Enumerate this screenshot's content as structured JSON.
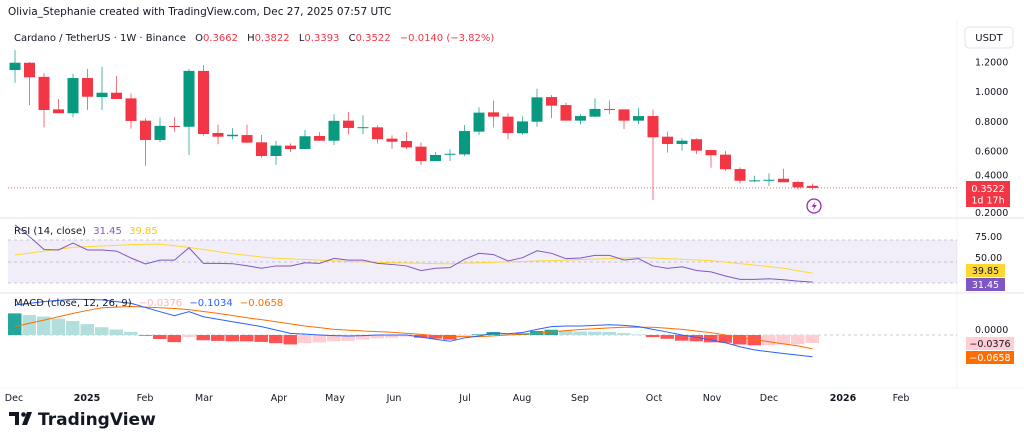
{
  "watermark": "Olivia_Stephanie created with TradingView.com, Dec 27, 2025 07:57 UTC",
  "legend": {
    "symbol": "Cardano / TetherUS · 1W · Binance",
    "o_label": "O",
    "o": "0.3662",
    "h_label": "H",
    "h": "0.3822",
    "l_label": "L",
    "l": "0.3393",
    "c_label": "C",
    "c": "0.3522",
    "change": "−0.0140 (−3.82%)"
  },
  "currency_button": "USDT",
  "price_axis": [
    "1.2000",
    "1.0000",
    "0.8000",
    "0.6000",
    "0.4000",
    "0.2000"
  ],
  "price_axis_values": [
    1.2,
    1.0,
    0.8,
    0.6,
    0.4,
    0.2
  ],
  "last_price_label": {
    "price": "0.3522",
    "countdown": "1d 17h"
  },
  "rsi": {
    "title": "RSI (14, close)",
    "value": "31.45",
    "ma_value": "39.85",
    "axis": [
      "75.00",
      "50.00"
    ],
    "values": [
      85,
      74,
      62,
      61.5,
      68,
      61.5,
      61.5,
      60.5,
      54,
      48.4,
      52,
      52,
      63.6,
      49,
      49,
      48.7,
      46.8,
      44.4,
      46.6,
      46.6,
      49.6,
      49,
      53.7,
      52,
      52,
      49,
      48,
      46.6,
      42.2,
      44.4,
      45,
      52.8,
      58.4,
      57.2,
      51.2,
      54.3,
      60.8,
      58.4,
      53.4,
      54,
      56.5,
      56.5,
      52.2,
      53.4,
      46.6,
      44.3,
      45.8,
      42.3,
      41,
      37.2,
      34,
      34,
      34.6,
      33.7,
      32.4,
      31.45
    ],
    "ma_values": [
      56.8,
      58.6,
      60.4,
      62.2,
      64,
      64.6,
      65.2,
      65.8,
      66.5,
      66.8,
      67,
      65.5,
      64,
      62,
      60,
      58,
      56.5,
      55,
      53.8,
      53.2,
      52.6,
      52,
      51.4,
      50.8,
      50.4,
      50,
      49.7,
      49.4,
      49.1,
      48.8,
      48.5,
      49.2,
      49.6,
      50,
      50.4,
      50.8,
      51.2,
      51.6,
      52,
      52.5,
      53,
      53.5,
      54,
      54.6,
      54,
      53.4,
      52.8,
      52.2,
      51.6,
      50.2,
      48.8,
      47.4,
      46,
      44.4,
      42.1,
      39.85
    ]
  },
  "macd": {
    "title": "MACD (close, 12, 26, 9)",
    "histogram_value": "−0.0376",
    "macd_value": "−0.1034",
    "signal_value": "−0.0658",
    "axis": [
      "0.0000"
    ],
    "macd": [
      0.143,
      0.151,
      0.159,
      0.165,
      0.17,
      0.169,
      0.167,
      0.159,
      0.151,
      0.131,
      0.111,
      0.092,
      0.111,
      0.087,
      0.075,
      0.063,
      0.052,
      0.04,
      0.024,
      0.008,
      0.004,
      0,
      -0.003,
      -0.005,
      -0.003,
      0,
      0,
      0,
      -0.01,
      -0.02,
      -0.03,
      -0.014,
      -0.005,
      0.01,
      0.006,
      0.012,
      0.027,
      0.04,
      0.043,
      0.043,
      0.046,
      0.049,
      0.046,
      0.04,
      0.027,
      0.014,
      0,
      -0.011,
      -0.024,
      -0.037,
      -0.056,
      -0.071,
      -0.08,
      -0.088,
      -0.096,
      -0.1034
    ],
    "signal": [
      0.04,
      0.056,
      0.071,
      0.087,
      0.103,
      0.117,
      0.13,
      0.133,
      0.136,
      0.133,
      0.13,
      0.126,
      0.121,
      0.112,
      0.103,
      0.093,
      0.082,
      0.073,
      0.063,
      0.053,
      0.043,
      0.035,
      0.027,
      0.023,
      0.019,
      0.016,
      0.013,
      0.008,
      0.003,
      -0.003,
      -0.008,
      -0.008,
      -0.008,
      -0.004,
      0,
      0.004,
      0.008,
      0.015,
      0.021,
      0.026,
      0.03,
      0.034,
      0.037,
      0.037,
      0.037,
      0.032,
      0.027,
      0.019,
      0.011,
      0,
      -0.011,
      -0.022,
      -0.032,
      -0.042,
      -0.052,
      -0.0658
    ]
  },
  "time_axis": [
    "Dec",
    "2025",
    "Feb",
    "Mar",
    "Apr",
    "May",
    "Jun",
    "Jul",
    "Aug",
    "Sep",
    "Oct",
    "Nov",
    "Dec",
    "2026",
    "Feb"
  ],
  "logo_text": "TradingView",
  "colors": {
    "up": "#089981",
    "down": "#f23645",
    "rsi": "#7e57c2",
    "rsi_ma": "#fdd835",
    "macd": "#2962ff",
    "signal": "#ff6d00",
    "hist_up_strong": "#26a69a",
    "hist_up_weak": "#b2dfdb",
    "hist_down_strong": "#ff5252",
    "hist_down_weak": "#ffcdd2"
  },
  "candles": [
    [
      1.146,
      1.28,
      1.06,
      1.195
    ],
    [
      1.195,
      1.2,
      0.91,
      1.097
    ],
    [
      1.1,
      1.124,
      0.76,
      0.877
    ],
    [
      0.881,
      0.95,
      0.855,
      0.855
    ],
    [
      0.855,
      1.12,
      0.83,
      1.092
    ],
    [
      1.092,
      1.153,
      0.877,
      0.966
    ],
    [
      0.964,
      1.168,
      0.877,
      0.993
    ],
    [
      0.993,
      1.106,
      0.951,
      0.951
    ],
    [
      0.955,
      0.989,
      0.751,
      0.803
    ],
    [
      0.805,
      0.821,
      0.502,
      0.675
    ],
    [
      0.675,
      0.828,
      0.661,
      0.77
    ],
    [
      0.769,
      0.83,
      0.73,
      0.763
    ],
    [
      0.764,
      1.153,
      0.574,
      1.14
    ],
    [
      1.14,
      1.18,
      0.704,
      0.715
    ],
    [
      0.722,
      0.778,
      0.646,
      0.697
    ],
    [
      0.7,
      0.755,
      0.68,
      0.71
    ],
    [
      0.708,
      0.778,
      0.655,
      0.657
    ],
    [
      0.659,
      0.708,
      0.556,
      0.567
    ],
    [
      0.567,
      0.67,
      0.506,
      0.637
    ],
    [
      0.637,
      0.652,
      0.592,
      0.614
    ],
    [
      0.614,
      0.742,
      0.614,
      0.7
    ],
    [
      0.702,
      0.728,
      0.668,
      0.67
    ],
    [
      0.67,
      0.848,
      0.641,
      0.804
    ],
    [
      0.805,
      0.863,
      0.713,
      0.756
    ],
    [
      0.758,
      0.841,
      0.713,
      0.761
    ],
    [
      0.76,
      0.774,
      0.652,
      0.68
    ],
    [
      0.684,
      0.706,
      0.616,
      0.663
    ],
    [
      0.668,
      0.728,
      0.614,
      0.625
    ],
    [
      0.63,
      0.657,
      0.506,
      0.533
    ],
    [
      0.533,
      0.592,
      0.533,
      0.574
    ],
    [
      0.578,
      0.612,
      0.533,
      0.582
    ],
    [
      0.578,
      0.776,
      0.567,
      0.735
    ],
    [
      0.731,
      0.895,
      0.708,
      0.859
    ],
    [
      0.861,
      0.94,
      0.76,
      0.832
    ],
    [
      0.832,
      0.855,
      0.681,
      0.722
    ],
    [
      0.72,
      0.832,
      0.71,
      0.8
    ],
    [
      0.798,
      1.02,
      0.764,
      0.962
    ],
    [
      0.964,
      0.978,
      0.821,
      0.906
    ],
    [
      0.91,
      0.926,
      0.805,
      0.805
    ],
    [
      0.805,
      0.85,
      0.78,
      0.836
    ],
    [
      0.832,
      0.956,
      0.83,
      0.884
    ],
    [
      0.883,
      0.94,
      0.85,
      0.879
    ],
    [
      0.881,
      0.883,
      0.749,
      0.805
    ],
    [
      0.805,
      0.892,
      0.78,
      0.836
    ],
    [
      0.836,
      0.881,
      0.27,
      0.693
    ],
    [
      0.697,
      0.73,
      0.59,
      0.648
    ],
    [
      0.648,
      0.686,
      0.603,
      0.67
    ],
    [
      0.68,
      0.686,
      0.58,
      0.603
    ],
    [
      0.607,
      0.61,
      0.488,
      0.572
    ],
    [
      0.576,
      0.6,
      0.468,
      0.478
    ],
    [
      0.479,
      0.49,
      0.383,
      0.4
    ],
    [
      0.4,
      0.434,
      0.39,
      0.403
    ],
    [
      0.403,
      0.45,
      0.365,
      0.407
    ],
    [
      0.414,
      0.48,
      0.39,
      0.39
    ],
    [
      0.392,
      0.4,
      0.343,
      0.356
    ],
    [
      0.3662,
      0.3822,
      0.3393,
      0.3522
    ]
  ]
}
